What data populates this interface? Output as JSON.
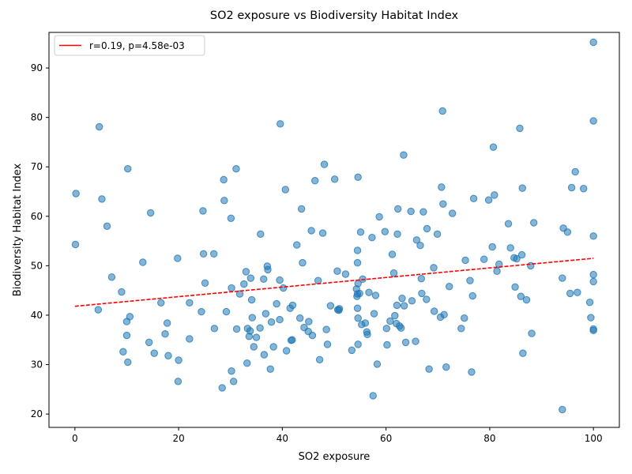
{
  "chart_data": {
    "type": "scatter",
    "title": "SO2 exposure vs Biodiversity Habitat Index",
    "xlabel": "SO2 exposure",
    "ylabel": "Biodiversity Habitat Index",
    "xlim": [
      -5,
      105
    ],
    "ylim": [
      17.3,
      97.2
    ],
    "x_ticks": [
      0,
      20,
      40,
      60,
      80,
      100
    ],
    "y_ticks": [
      20,
      30,
      40,
      50,
      60,
      70,
      80,
      90
    ],
    "grid": false,
    "legend_position": "top-left",
    "colors": {
      "points": "#1f77b4",
      "fit": "#ff0000"
    },
    "fit_line": {
      "label": "r=0.19, p=4.58e-03",
      "x": [
        0,
        100
      ],
      "y": [
        41.8,
        51.5
      ]
    },
    "points": [
      [
        0.2,
        64.6
      ],
      [
        0.1,
        54.3
      ],
      [
        4.7,
        78.1
      ],
      [
        5.2,
        63.5
      ],
      [
        4.5,
        41.1
      ],
      [
        6.2,
        58.0
      ],
      [
        7.1,
        47.7
      ],
      [
        9.0,
        44.7
      ],
      [
        9.3,
        32.6
      ],
      [
        10.0,
        38.7
      ],
      [
        10.0,
        35.9
      ],
      [
        10.2,
        30.5
      ],
      [
        10.6,
        39.7
      ],
      [
        10.2,
        69.6
      ],
      [
        13.1,
        50.7
      ],
      [
        14.3,
        34.5
      ],
      [
        14.6,
        60.7
      ],
      [
        15.3,
        32.3
      ],
      [
        16.6,
        42.5
      ],
      [
        17.4,
        36.2
      ],
      [
        17.8,
        38.4
      ],
      [
        18.0,
        31.8
      ],
      [
        19.8,
        51.5
      ],
      [
        19.9,
        26.6
      ],
      [
        20.0,
        30.9
      ],
      [
        22.1,
        42.5
      ],
      [
        22.1,
        35.2
      ],
      [
        24.4,
        40.7
      ],
      [
        24.7,
        61.1
      ],
      [
        24.8,
        52.4
      ],
      [
        25.1,
        46.5
      ],
      [
        26.8,
        52.4
      ],
      [
        26.9,
        37.3
      ],
      [
        28.4,
        25.3
      ],
      [
        28.7,
        67.4
      ],
      [
        28.8,
        63.2
      ],
      [
        29.2,
        40.7
      ],
      [
        30.1,
        59.6
      ],
      [
        30.2,
        45.5
      ],
      [
        30.2,
        28.7
      ],
      [
        30.6,
        26.6
      ],
      [
        31.1,
        69.6
      ],
      [
        31.2,
        37.2
      ],
      [
        31.8,
        44.3
      ],
      [
        32.6,
        46.3
      ],
      [
        33.0,
        48.8
      ],
      [
        33.2,
        30.3
      ],
      [
        33.3,
        37.3
      ],
      [
        33.6,
        35.7
      ],
      [
        33.8,
        36.8
      ],
      [
        33.9,
        47.5
      ],
      [
        34.1,
        43.1
      ],
      [
        34.2,
        39.5
      ],
      [
        34.5,
        33.6
      ],
      [
        35.0,
        35.5
      ],
      [
        35.7,
        37.4
      ],
      [
        35.8,
        56.4
      ],
      [
        36.4,
        47.3
      ],
      [
        36.5,
        32.0
      ],
      [
        36.8,
        40.3
      ],
      [
        37.1,
        49.9
      ],
      [
        37.2,
        49.2
      ],
      [
        37.7,
        29.1
      ],
      [
        37.9,
        38.6
      ],
      [
        38.3,
        33.6
      ],
      [
        38.9,
        42.3
      ],
      [
        39.5,
        47.1
      ],
      [
        39.5,
        39.1
      ],
      [
        39.6,
        78.7
      ],
      [
        40.2,
        45.5
      ],
      [
        40.6,
        65.4
      ],
      [
        40.8,
        32.8
      ],
      [
        41.5,
        41.4
      ],
      [
        41.7,
        34.9
      ],
      [
        41.9,
        35.0
      ],
      [
        42.0,
        42.0
      ],
      [
        42.8,
        54.2
      ],
      [
        43.4,
        39.4
      ],
      [
        43.7,
        61.5
      ],
      [
        43.9,
        50.6
      ],
      [
        44.2,
        37.5
      ],
      [
        45.0,
        36.7
      ],
      [
        45.1,
        38.7
      ],
      [
        45.6,
        57.1
      ],
      [
        45.8,
        35.9
      ],
      [
        46.3,
        67.2
      ],
      [
        46.9,
        47.0
      ],
      [
        47.2,
        31.0
      ],
      [
        47.8,
        56.6
      ],
      [
        48.1,
        70.5
      ],
      [
        48.5,
        37.1
      ],
      [
        48.7,
        34.1
      ],
      [
        49.3,
        41.9
      ],
      [
        50.1,
        67.5
      ],
      [
        50.6,
        48.9
      ],
      [
        50.7,
        41.1
      ],
      [
        50.9,
        41.0
      ],
      [
        51.0,
        41.3
      ],
      [
        52.2,
        48.3
      ],
      [
        53.4,
        32.9
      ],
      [
        54.3,
        45.3
      ],
      [
        54.4,
        43.8
      ],
      [
        54.5,
        44.3
      ],
      [
        54.6,
        46.4
      ],
      [
        54.5,
        53.1
      ],
      [
        54.5,
        50.6
      ],
      [
        54.5,
        41.4
      ],
      [
        54.6,
        39.4
      ],
      [
        54.6,
        34.1
      ],
      [
        54.6,
        67.9
      ],
      [
        54.9,
        44.4
      ],
      [
        55.1,
        56.8
      ],
      [
        55.3,
        38.1
      ],
      [
        55.5,
        47.3
      ],
      [
        56.0,
        38.4
      ],
      [
        56.3,
        36.6
      ],
      [
        56.4,
        36.1
      ],
      [
        56.7,
        44.6
      ],
      [
        57.3,
        55.7
      ],
      [
        57.5,
        23.7
      ],
      [
        57.7,
        40.3
      ],
      [
        58.0,
        44.0
      ],
      [
        58.3,
        30.1
      ],
      [
        58.7,
        59.9
      ],
      [
        59.8,
        56.9
      ],
      [
        60.1,
        37.3
      ],
      [
        60.2,
        34.0
      ],
      [
        60.8,
        38.8
      ],
      [
        61.2,
        52.3
      ],
      [
        61.5,
        48.5
      ],
      [
        61.7,
        39.9
      ],
      [
        62.0,
        38.3
      ],
      [
        62.1,
        42.0
      ],
      [
        62.2,
        56.4
      ],
      [
        62.3,
        61.5
      ],
      [
        62.6,
        37.8
      ],
      [
        62.9,
        37.4
      ],
      [
        63.1,
        43.4
      ],
      [
        63.4,
        72.4
      ],
      [
        63.5,
        41.9
      ],
      [
        63.8,
        34.5
      ],
      [
        64.8,
        61.0
      ],
      [
        65.0,
        42.9
      ],
      [
        65.7,
        34.7
      ],
      [
        65.9,
        55.2
      ],
      [
        66.6,
        54.1
      ],
      [
        66.8,
        47.4
      ],
      [
        66.9,
        44.4
      ],
      [
        67.2,
        60.9
      ],
      [
        67.8,
        43.2
      ],
      [
        67.9,
        57.5
      ],
      [
        68.3,
        29.1
      ],
      [
        69.2,
        49.6
      ],
      [
        69.3,
        40.8
      ],
      [
        69.9,
        56.4
      ],
      [
        70.5,
        39.6
      ],
      [
        70.7,
        65.9
      ],
      [
        71.0,
        62.5
      ],
      [
        70.9,
        81.3
      ],
      [
        71.2,
        40.1
      ],
      [
        71.6,
        29.5
      ],
      [
        72.2,
        45.8
      ],
      [
        72.8,
        60.6
      ],
      [
        74.5,
        37.3
      ],
      [
        75.1,
        39.4
      ],
      [
        75.3,
        51.1
      ],
      [
        76.2,
        47.0
      ],
      [
        76.5,
        28.5
      ],
      [
        76.7,
        43.9
      ],
      [
        76.9,
        63.6
      ],
      [
        78.9,
        51.3
      ],
      [
        79.8,
        63.3
      ],
      [
        80.5,
        53.8
      ],
      [
        80.7,
        74.0
      ],
      [
        80.9,
        64.3
      ],
      [
        81.4,
        48.9
      ],
      [
        81.8,
        50.3
      ],
      [
        83.6,
        58.5
      ],
      [
        84.0,
        53.6
      ],
      [
        84.7,
        51.6
      ],
      [
        84.9,
        45.7
      ],
      [
        85.2,
        51.4
      ],
      [
        85.8,
        77.8
      ],
      [
        86.0,
        43.8
      ],
      [
        86.3,
        65.7
      ],
      [
        86.2,
        52.2
      ],
      [
        86.4,
        32.3
      ],
      [
        87.1,
        43.1
      ],
      [
        87.9,
        50.0
      ],
      [
        88.1,
        36.3
      ],
      [
        88.5,
        58.7
      ],
      [
        94.0,
        20.9
      ],
      [
        94.0,
        47.5
      ],
      [
        94.2,
        57.6
      ],
      [
        95.0,
        56.8
      ],
      [
        95.5,
        44.4
      ],
      [
        95.8,
        65.8
      ],
      [
        96.5,
        69.0
      ],
      [
        96.9,
        44.6
      ],
      [
        98.1,
        65.6
      ],
      [
        99.3,
        42.6
      ],
      [
        99.5,
        39.5
      ],
      [
        100.0,
        95.2
      ],
      [
        100.0,
        79.3
      ],
      [
        100.0,
        56.0
      ],
      [
        100.0,
        48.2
      ],
      [
        100.0,
        46.8
      ],
      [
        100.0,
        37.2
      ],
      [
        100.0,
        36.9
      ]
    ]
  }
}
